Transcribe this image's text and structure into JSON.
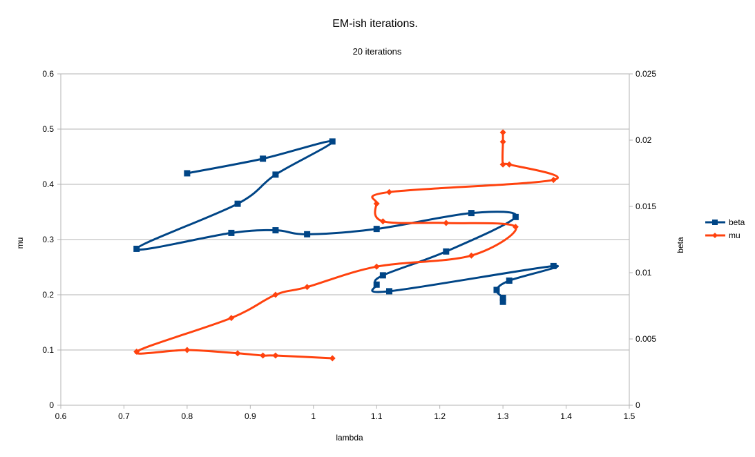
{
  "chart_data": {
    "type": "scatter",
    "title": "EM-ish iterations.",
    "subtitle": "20 iterations",
    "xlabel": "lambda",
    "ylabel": "mu",
    "y2label": "beta",
    "xlim": [
      0.6,
      1.5
    ],
    "ylim": [
      0,
      0.6
    ],
    "y2lim": [
      0,
      0.025
    ],
    "x_ticks": [
      "0.6",
      "0.7",
      "0.8",
      "0.9",
      "1",
      "1.1",
      "1.2",
      "1.3",
      "1.4",
      "1.5"
    ],
    "y_ticks": [
      "0",
      "0.1",
      "0.2",
      "0.3",
      "0.4",
      "0.5",
      "0.6"
    ],
    "y2_ticks": [
      "0",
      "0.005",
      "0.01",
      "0.015",
      "0.02",
      "0.025"
    ],
    "grid": true,
    "legend_position": "right",
    "series": [
      {
        "name": "beta",
        "axis": "secondary",
        "color": "#004586",
        "marker": "square",
        "points": [
          [
            0.8,
            0.0175
          ],
          [
            0.92,
            0.0186
          ],
          [
            1.03,
            0.0199
          ],
          [
            0.94,
            0.0174
          ],
          [
            0.88,
            0.0152
          ],
          [
            0.72,
            0.0118
          ],
          [
            0.87,
            0.013
          ],
          [
            0.94,
            0.0132
          ],
          [
            0.99,
            0.0129
          ],
          [
            1.1,
            0.0133
          ],
          [
            1.25,
            0.0145
          ],
          [
            1.32,
            0.0142
          ],
          [
            1.21,
            0.0116
          ],
          [
            1.11,
            0.0098
          ],
          [
            1.1,
            0.0091
          ],
          [
            1.12,
            0.0086
          ],
          [
            1.38,
            0.0105
          ],
          [
            1.31,
            0.0094
          ],
          [
            1.29,
            0.0087
          ],
          [
            1.3,
            0.0081
          ],
          [
            1.3,
            0.0078
          ]
        ]
      },
      {
        "name": "mu",
        "axis": "primary",
        "color": "#ff420e",
        "marker": "diamond",
        "points": [
          [
            1.3,
            0.494
          ],
          [
            1.3,
            0.477
          ],
          [
            1.3,
            0.436
          ],
          [
            1.31,
            0.436
          ],
          [
            1.38,
            0.408
          ],
          [
            1.12,
            0.386
          ],
          [
            1.1,
            0.365
          ],
          [
            1.11,
            0.333
          ],
          [
            1.21,
            0.33
          ],
          [
            1.32,
            0.323
          ],
          [
            1.25,
            0.271
          ],
          [
            1.1,
            0.251
          ],
          [
            0.99,
            0.214
          ],
          [
            0.94,
            0.2
          ],
          [
            0.87,
            0.158
          ],
          [
            0.72,
            0.097
          ],
          [
            0.8,
            0.1
          ],
          [
            0.88,
            0.094
          ],
          [
            0.92,
            0.09
          ],
          [
            0.94,
            0.09
          ],
          [
            1.03,
            0.085
          ]
        ]
      }
    ]
  }
}
